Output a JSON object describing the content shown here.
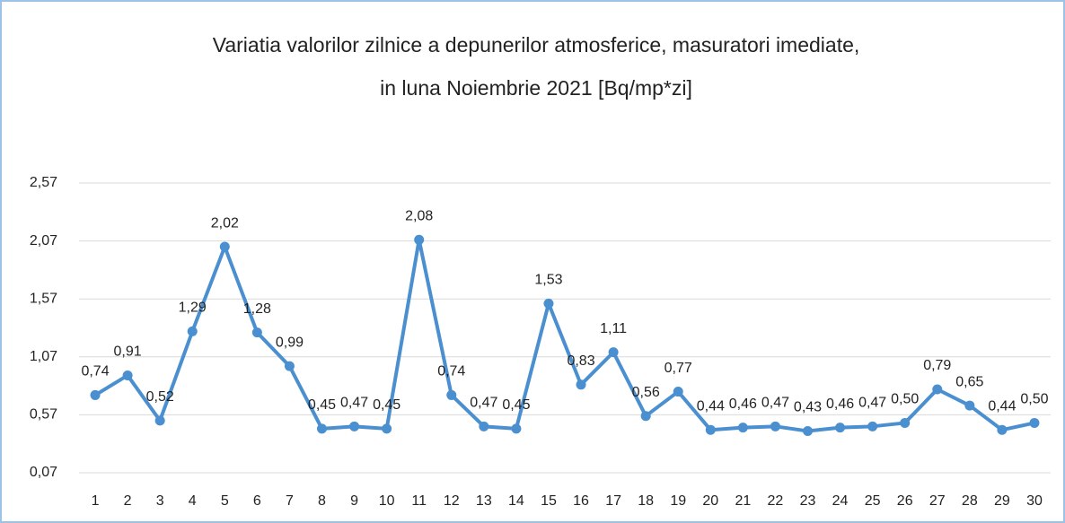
{
  "chart_data": {
    "type": "line",
    "title": [
      "Variatia valorilor zilnice a depunerilor atmosferice, masuratori imediate,",
      "in luna Noiembrie 2021 [Bq/mp*zi]"
    ],
    "categories": [
      "1",
      "2",
      "3",
      "4",
      "5",
      "6",
      "7",
      "8",
      "9",
      "10",
      "11",
      "12",
      "13",
      "14",
      "15",
      "16",
      "17",
      "18",
      "19",
      "20",
      "21",
      "22",
      "23",
      "24",
      "25",
      "26",
      "27",
      "28",
      "29",
      "30"
    ],
    "values": [
      0.74,
      0.91,
      0.52,
      1.29,
      2.02,
      1.28,
      0.99,
      0.45,
      0.47,
      0.45,
      2.08,
      0.74,
      0.47,
      0.45,
      1.53,
      0.83,
      1.11,
      0.56,
      0.77,
      0.44,
      0.46,
      0.47,
      0.43,
      0.46,
      0.47,
      0.5,
      0.79,
      0.65,
      0.44,
      0.5
    ],
    "value_labels": [
      "0,74",
      "0,91",
      "0,52",
      "1,29",
      "2,02",
      "1,28",
      "0,99",
      "0,45",
      "0,47",
      "0,45",
      "2,08",
      "0,74",
      "0,47",
      "0,45",
      "1,53",
      "0,83",
      "1,11",
      "0,56",
      "0,77",
      "0,44",
      "0,46",
      "0,47",
      "0,43",
      "0,46",
      "0,47",
      "0,50",
      "0,79",
      "0,65",
      "0,44",
      "0,50"
    ],
    "color": "#4a8fcf",
    "ylim": [
      0.07,
      2.57
    ],
    "yticks": [
      {
        "value": 0.07,
        "label": "0,07"
      },
      {
        "value": 0.57,
        "label": "0,57"
      },
      {
        "value": 1.07,
        "label": "1,07"
      },
      {
        "value": 1.57,
        "label": "1,57"
      },
      {
        "value": 2.07,
        "label": "2,07"
      },
      {
        "value": 2.57,
        "label": "2,57"
      }
    ],
    "grid": true
  }
}
